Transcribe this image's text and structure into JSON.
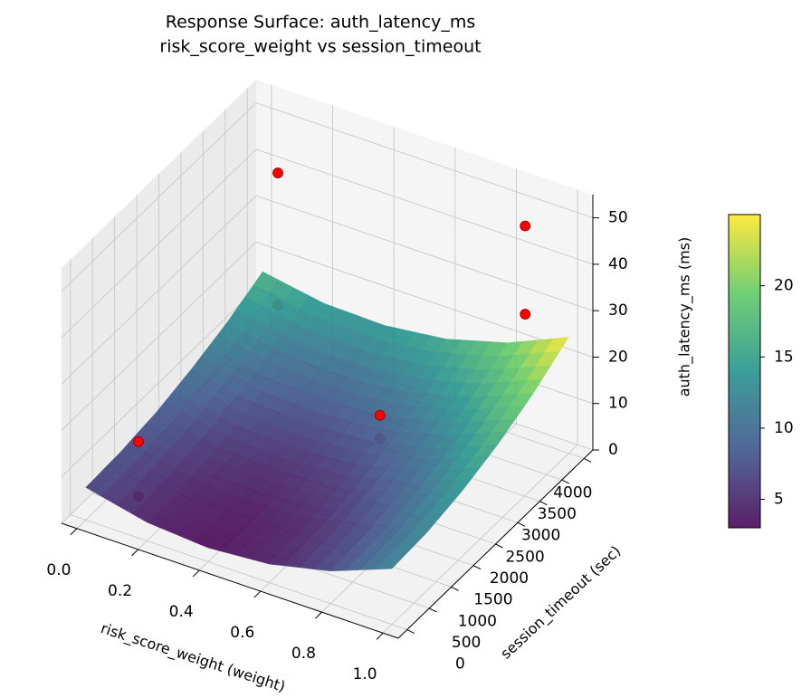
{
  "chart_data": {
    "type": "surface3d",
    "title": "Response Surface: auth_latency_ms",
    "subtitle": "risk_score_weight vs session_timeout",
    "x_label": "risk_score_weight (weight)",
    "y_label": "session_timeout (sec)",
    "z_label": "auth_latency_ms (ms)",
    "xlim": [
      -0.05,
      1.05
    ],
    "ylim": [
      -200,
      4200
    ],
    "zlim": [
      0,
      55
    ],
    "xticks": [
      {
        "value": 0,
        "label": "0.0"
      },
      0.2,
      0.4,
      0.6,
      0.8,
      {
        "value": 1,
        "label": "1.0"
      }
    ],
    "yticks": [
      0,
      500,
      1000,
      1500,
      2000,
      2500,
      3000,
      3500,
      4000
    ],
    "zticks": [
      0,
      10,
      20,
      30,
      40,
      50
    ],
    "grid": true,
    "colormap": [
      "#440154",
      "#3b528b",
      "#21918c",
      "#5ec962",
      "#fde725"
    ],
    "clim": [
      3,
      25
    ],
    "colorbar_ticks": [
      5,
      10,
      15,
      20
    ],
    "surface": {
      "x": [
        0,
        0.2,
        0.4,
        0.6,
        0.8,
        1
      ],
      "y": [
        0,
        800,
        1600,
        2400,
        3200,
        4000
      ],
      "z": [
        [
          7,
          4,
          3,
          4,
          7,
          12
        ],
        [
          7.4,
          4.4,
          3.4,
          4.5,
          7.5,
          12.5
        ],
        [
          8.5,
          5.6,
          4.8,
          5.9,
          9.0,
          14.1
        ],
        [
          10.5,
          7.7,
          7.0,
          8.2,
          11.4,
          16.7
        ],
        [
          13.1,
          10.6,
          10.0,
          11.5,
          14.9,
          20.3
        ],
        [
          16.6,
          14.3,
          14.0,
          15.6,
          19.3,
          25.0
        ]
      ]
    },
    "scatter": {
      "color": "#ff0000",
      "x": [
        0.05,
        0.05,
        0.93,
        0.93,
        0.6,
        0.6,
        0.1,
        0.1
      ],
      "y": [
        4000,
        4000,
        3500,
        3500,
        2500,
        2500,
        500,
        500
      ],
      "z": [
        39,
        10.5,
        52,
        33,
        13,
        8,
        14.5,
        2.7
      ]
    }
  }
}
